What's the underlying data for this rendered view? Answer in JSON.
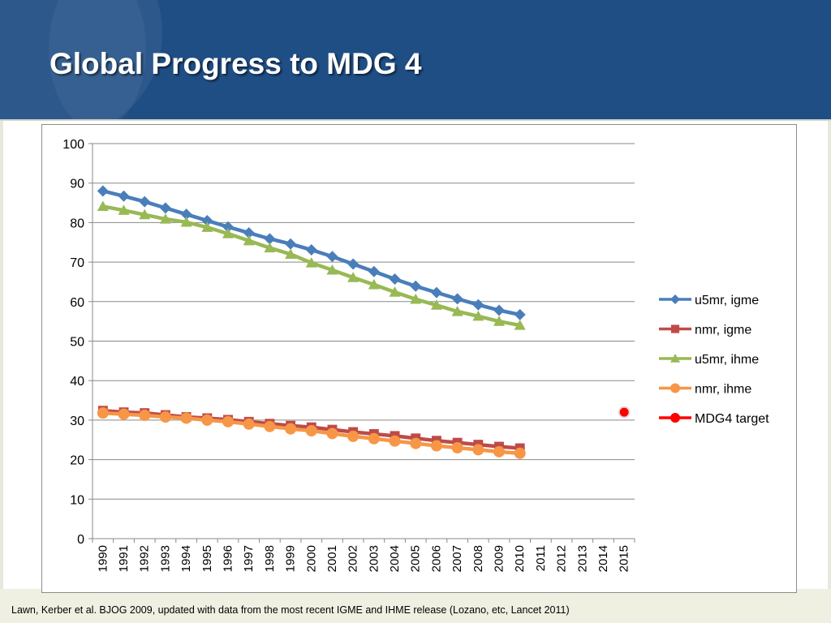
{
  "slide": {
    "title": "Global Progress to MDG 4",
    "source": "Lawn, Kerber et al. BJOG 2009, updated with data from the most recent IGME and IHME release (Lozano, etc, Lancet 2011)"
  },
  "colors": {
    "header_bg": "#1f4e85",
    "title_text": "#ffffff",
    "gridline": "#898989"
  },
  "chart_data": {
    "type": "line",
    "title": "",
    "xlabel": "",
    "ylabel": "",
    "ylim": [
      0,
      100
    ],
    "yticks": [
      0,
      10,
      20,
      30,
      40,
      50,
      60,
      70,
      80,
      90,
      100
    ],
    "grid": true,
    "legend_position": "right",
    "categories": [
      "1990",
      "1991",
      "1992",
      "1993",
      "1994",
      "1995",
      "1996",
      "1997",
      "1998",
      "1999",
      "2000",
      "2001",
      "2002",
      "2003",
      "2004",
      "2005",
      "2006",
      "2007",
      "2008",
      "2009",
      "2010",
      "2011",
      "2012",
      "2013",
      "2014",
      "2015"
    ],
    "series": [
      {
        "name": "u5mr, igme",
        "marker": "diamond",
        "color": "#4a7ebb",
        "values": [
          88.0,
          86.7,
          85.3,
          83.7,
          82.1,
          80.5,
          78.9,
          77.4,
          75.9,
          74.6,
          73.1,
          71.4,
          69.5,
          67.6,
          65.7,
          63.9,
          62.3,
          60.7,
          59.2,
          57.8,
          56.7,
          null,
          null,
          null,
          null,
          null
        ]
      },
      {
        "name": "nmr, igme",
        "marker": "square",
        "color": "#be4b48",
        "values": [
          32.4,
          32.0,
          31.8,
          31.3,
          30.8,
          30.5,
          30.1,
          29.6,
          29.1,
          28.6,
          28.2,
          27.6,
          27.0,
          26.5,
          26.0,
          25.4,
          24.8,
          24.3,
          23.8,
          23.3,
          22.9,
          null,
          null,
          null,
          null,
          null
        ]
      },
      {
        "name": "u5mr, ihme",
        "marker": "triangle",
        "color": "#98b954",
        "values": [
          84.1,
          83.1,
          82.0,
          80.9,
          80.1,
          78.8,
          77.2,
          75.4,
          73.6,
          72.0,
          69.8,
          68.0,
          66.1,
          64.3,
          62.4,
          60.6,
          59.1,
          57.5,
          56.3,
          55.0,
          54.0,
          null,
          null,
          null,
          null,
          null
        ]
      },
      {
        "name": "nmr, ihme",
        "marker": "circle",
        "color": "#f79646",
        "values": [
          31.8,
          31.5,
          31.2,
          30.8,
          30.5,
          30.0,
          29.6,
          29.0,
          28.4,
          27.8,
          27.3,
          26.6,
          25.9,
          25.3,
          24.7,
          24.1,
          23.5,
          23.0,
          22.5,
          22.0,
          21.6,
          null,
          null,
          null,
          null,
          null
        ]
      },
      {
        "name": "MDG4 target",
        "marker": "circle",
        "color": "#ff0000",
        "values": [
          null,
          null,
          null,
          null,
          null,
          null,
          null,
          null,
          null,
          null,
          null,
          null,
          null,
          null,
          null,
          null,
          null,
          null,
          null,
          null,
          null,
          null,
          null,
          null,
          null,
          32.0
        ]
      }
    ]
  }
}
